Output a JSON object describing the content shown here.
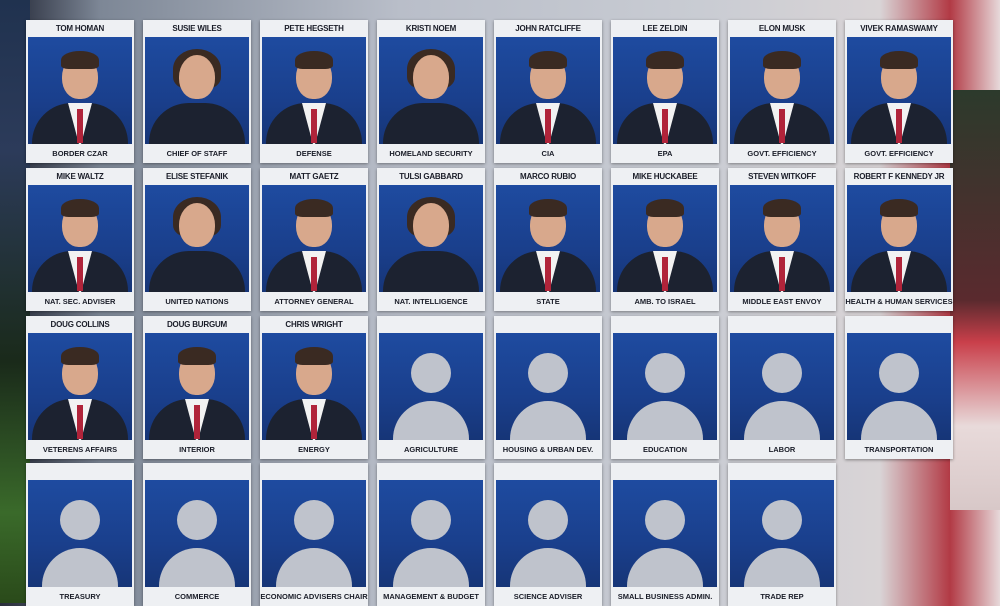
{
  "colors": {
    "photo_bg": "#1e4ba0",
    "card": "#eef0f3",
    "placeholder": "#bfc3cc"
  },
  "rows": [
    [
      {
        "name": "TOM HOMAN",
        "role": "BORDER CZAR",
        "filled": true
      },
      {
        "name": "SUSIE WILES",
        "role": "CHIEF OF STAFF",
        "filled": true
      },
      {
        "name": "PETE HEGSETH",
        "role": "DEFENSE",
        "filled": true
      },
      {
        "name": "KRISTI NOEM",
        "role": "HOMELAND SECURITY",
        "filled": true
      },
      {
        "name": "JOHN RATCLIFFE",
        "role": "CIA",
        "filled": true
      },
      {
        "name": "LEE ZELDIN",
        "role": "EPA",
        "filled": true
      },
      {
        "name": "ELON MUSK",
        "role": "GOVT. EFFICIENCY",
        "filled": true
      },
      {
        "name": "VIVEK RAMASWAMY",
        "role": "GOVT. EFFICIENCY",
        "filled": true
      }
    ],
    [
      {
        "name": "MIKE WALTZ",
        "role": "NAT. SEC. ADVISER",
        "filled": true
      },
      {
        "name": "ELISE STEFANIK",
        "role": "UNITED NATIONS",
        "filled": true
      },
      {
        "name": "MATT GAETZ",
        "role": "ATTORNEY GENERAL",
        "filled": true
      },
      {
        "name": "TULSI GABBARD",
        "role": "NAT. INTELLIGENCE",
        "filled": true
      },
      {
        "name": "MARCO RUBIO",
        "role": "STATE",
        "filled": true
      },
      {
        "name": "MIKE HUCKABEE",
        "role": "AMB. TO ISRAEL",
        "filled": true
      },
      {
        "name": "STEVEN WITKOFF",
        "role": "MIDDLE EAST ENVOY",
        "filled": true
      },
      {
        "name": "ROBERT F KENNEDY JR",
        "role": "HEALTH & HUMAN SERVICES",
        "filled": true
      }
    ],
    [
      {
        "name": "DOUG COLLINS",
        "role": "VETERENS AFFAIRS",
        "filled": true
      },
      {
        "name": "DOUG BURGUM",
        "role": "INTERIOR",
        "filled": true
      },
      {
        "name": "CHRIS WRIGHT",
        "role": "ENERGY",
        "filled": true
      },
      {
        "name": "",
        "role": "AGRICULTURE",
        "filled": false
      },
      {
        "name": "",
        "role": "HOUSING & URBAN DEV.",
        "filled": false
      },
      {
        "name": "",
        "role": "EDUCATION",
        "filled": false
      },
      {
        "name": "",
        "role": "LABOR",
        "filled": false
      },
      {
        "name": "",
        "role": "TRANSPORTATION",
        "filled": false
      }
    ],
    [
      {
        "name": "",
        "role": "TREASURY",
        "filled": false
      },
      {
        "name": "",
        "role": "COMMERCE",
        "filled": false
      },
      {
        "name": "",
        "role": "ECONOMIC ADVISERS CHAIR",
        "filled": false
      },
      {
        "name": "",
        "role": "MANAGEMENT & BUDGET",
        "filled": false
      },
      {
        "name": "",
        "role": "SCIENCE ADVISER",
        "filled": false
      },
      {
        "name": "",
        "role": "SMALL BUSINESS ADMIN.",
        "filled": false
      },
      {
        "name": "",
        "role": "TRADE REP",
        "filled": false
      }
    ]
  ]
}
